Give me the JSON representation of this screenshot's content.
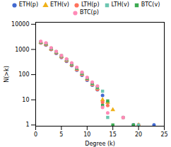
{
  "chart_data": {
    "type": "scatter",
    "xlabel": "Degree (k)",
    "ylabel": "N(>k)",
    "xlim": [
      0,
      25
    ],
    "ylim": [
      0.9,
      12000
    ],
    "xticks": [
      0,
      5,
      10,
      15,
      20,
      25
    ],
    "yticks": [
      1,
      10,
      100,
      1000,
      10000
    ],
    "log": "y",
    "grid": false,
    "legend": "top",
    "series": [
      {
        "name": "ETH(p)",
        "marker": "circle",
        "x": [
          1,
          2,
          3,
          4,
          5,
          6,
          7,
          8,
          9,
          10,
          11,
          12,
          13,
          14,
          19,
          23
        ],
        "values": [
          1800,
          1500,
          1000,
          700,
          480,
          340,
          230,
          150,
          95,
          60,
          38,
          25,
          15,
          8,
          1,
          1
        ]
      },
      {
        "name": "ETH(v)",
        "marker": "triangle",
        "x": [
          1,
          2,
          3,
          4,
          5,
          6,
          7,
          8,
          9,
          10,
          11,
          12,
          13,
          14,
          15,
          20
        ],
        "values": [
          1900,
          1600,
          1050,
          750,
          520,
          370,
          250,
          165,
          105,
          68,
          42,
          28,
          10,
          8,
          4,
          1
        ]
      },
      {
        "name": "LTH(p)",
        "marker": "circle",
        "x": [
          1,
          2,
          3,
          4,
          5,
          6,
          7,
          8,
          9,
          10,
          11,
          12,
          13,
          14,
          17,
          20
        ],
        "values": [
          1850,
          1550,
          1020,
          730,
          500,
          355,
          240,
          158,
          100,
          64,
          40,
          26,
          8,
          6,
          2,
          1
        ]
      },
      {
        "name": "LTH(v)",
        "marker": "square",
        "x": [
          1,
          2,
          3,
          4,
          5,
          6,
          7,
          8,
          9,
          10,
          11,
          12,
          13,
          14,
          17,
          20
        ],
        "values": [
          1950,
          1650,
          1080,
          780,
          540,
          385,
          265,
          175,
          110,
          70,
          44,
          30,
          22,
          2,
          2,
          1
        ]
      },
      {
        "name": "BTC(v)",
        "marker": "square",
        "x": [
          1,
          2,
          3,
          4,
          5,
          6,
          7,
          8,
          9,
          10,
          11,
          12,
          13,
          14,
          15,
          19
        ],
        "values": [
          2000,
          1700,
          1100,
          800,
          560,
          400,
          270,
          180,
          115,
          72,
          46,
          32,
          6,
          9,
          1,
          1
        ]
      },
      {
        "name": "BTC(p)",
        "marker": "circle",
        "x": [
          1,
          2,
          3,
          4,
          5,
          6,
          7,
          8,
          9,
          10,
          11,
          12,
          13,
          14,
          17
        ],
        "values": [
          2100,
          1800,
          1150,
          830,
          580,
          420,
          290,
          195,
          125,
          78,
          50,
          35,
          5,
          3,
          2
        ]
      }
    ]
  }
}
